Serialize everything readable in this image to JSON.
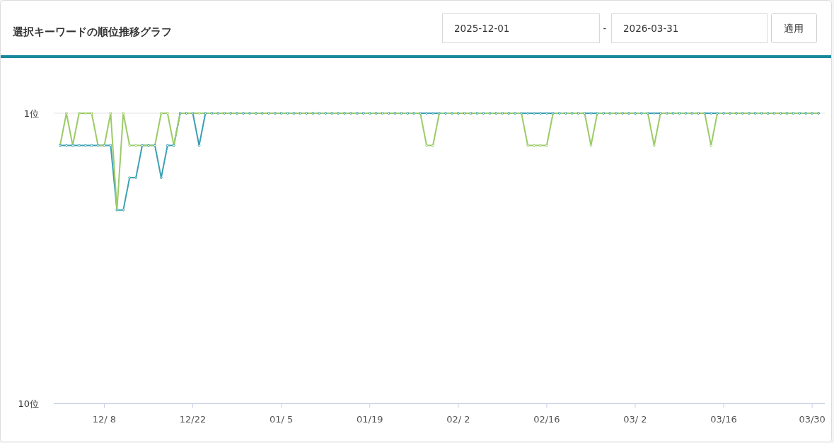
{
  "chart_data": {
    "type": "line",
    "title": "選択キーワードの順位推移グラフ",
    "annotations": [
      "2025-12-01",
      "-",
      "2026-03-31",
      "適用"
    ],
    "x": [
      "2025-12-01",
      "2025-12-02",
      "2025-12-03",
      "2025-12-04",
      "2025-12-05",
      "2025-12-06",
      "2025-12-07",
      "2025-12-08",
      "2025-12-09",
      "2025-12-10",
      "2025-12-11",
      "2025-12-12",
      "2025-12-13",
      "2025-12-14",
      "2025-12-15",
      "2025-12-16",
      "2025-12-17",
      "2025-12-18",
      "2025-12-19",
      "2025-12-20",
      "2025-12-21",
      "2025-12-22",
      "2025-12-23",
      "2025-12-24",
      "2025-12-25",
      "2025-12-26",
      "2025-12-27",
      "2025-12-28",
      "2025-12-29",
      "2025-12-30",
      "2025-12-31",
      "2026-01-01",
      "2026-01-02",
      "2026-01-03",
      "2026-01-04",
      "2026-01-05",
      "2026-01-06",
      "2026-01-07",
      "2026-01-08",
      "2026-01-09",
      "2026-01-10",
      "2026-01-11",
      "2026-01-12",
      "2026-01-13",
      "2026-01-14",
      "2026-01-15",
      "2026-01-16",
      "2026-01-17",
      "2026-01-18",
      "2026-01-19",
      "2026-01-20",
      "2026-01-21",
      "2026-01-22",
      "2026-01-23",
      "2026-01-24",
      "2026-01-25",
      "2026-01-26",
      "2026-01-27",
      "2026-01-28",
      "2026-01-29",
      "2026-01-30",
      "2026-01-31",
      "2026-02-01",
      "2026-02-02",
      "2026-02-03",
      "2026-02-04",
      "2026-02-05",
      "2026-02-06",
      "2026-02-07",
      "2026-02-08",
      "2026-02-09",
      "2026-02-10",
      "2026-02-11",
      "2026-02-12",
      "2026-02-13",
      "2026-02-14",
      "2026-02-15",
      "2026-02-16",
      "2026-02-17",
      "2026-02-18",
      "2026-02-19",
      "2026-02-20",
      "2026-02-21",
      "2026-02-22",
      "2026-02-23",
      "2026-02-24",
      "2026-02-25",
      "2026-02-26",
      "2026-02-27",
      "2026-02-28",
      "2026-03-01",
      "2026-03-02",
      "2026-03-03",
      "2026-03-04",
      "2026-03-05",
      "2026-03-06",
      "2026-03-07",
      "2026-03-08",
      "2026-03-09",
      "2026-03-10",
      "2026-03-11",
      "2026-03-12",
      "2026-03-13",
      "2026-03-14",
      "2026-03-15",
      "2026-03-16",
      "2026-03-17",
      "2026-03-18",
      "2026-03-19",
      "2026-03-20",
      "2026-03-21",
      "2026-03-22",
      "2026-03-23",
      "2026-03-24",
      "2026-03-25",
      "2026-03-26",
      "2026-03-27",
      "2026-03-28",
      "2026-03-29",
      "2026-03-30",
      "2026-03-31"
    ],
    "series": [
      {
        "color": "#3ba1b3",
        "values": [
          2,
          2,
          2,
          2,
          2,
          2,
          2,
          2,
          2,
          4,
          4,
          3,
          3,
          2,
          2,
          2,
          3,
          2,
          2,
          1,
          1,
          1,
          2,
          1,
          1,
          1,
          1,
          1,
          1,
          1,
          1,
          1,
          1,
          1,
          1,
          1,
          1,
          1,
          1,
          1,
          1,
          1,
          1,
          1,
          1,
          1,
          1,
          1,
          1,
          1,
          1,
          1,
          1,
          1,
          1,
          1,
          1,
          1,
          1,
          1,
          1,
          1,
          1,
          1,
          1,
          1,
          1,
          1,
          1,
          1,
          1,
          1,
          1,
          1,
          1,
          1,
          1,
          1,
          1,
          1,
          1,
          1,
          1,
          1,
          1,
          1,
          1,
          1,
          1,
          1,
          1,
          1,
          1,
          1,
          1,
          1,
          1,
          1,
          1,
          1,
          1,
          1,
          1,
          1,
          1,
          1,
          1,
          1,
          1,
          1,
          1,
          1,
          1,
          1,
          1,
          1,
          1,
          1,
          1,
          1,
          1
        ]
      },
      {
        "color": "#9ccb68",
        "values": [
          2,
          1,
          2,
          1,
          1,
          1,
          2,
          2,
          1,
          4,
          1,
          2,
          2,
          2,
          2,
          2,
          1,
          1,
          2,
          1,
          1,
          1,
          1,
          1,
          1,
          1,
          1,
          1,
          1,
          1,
          1,
          1,
          1,
          1,
          1,
          1,
          1,
          1,
          1,
          1,
          1,
          1,
          1,
          1,
          1,
          1,
          1,
          1,
          1,
          1,
          1,
          1,
          1,
          1,
          1,
          1,
          1,
          1,
          2,
          2,
          1,
          1,
          1,
          1,
          1,
          1,
          1,
          1,
          1,
          1,
          1,
          1,
          1,
          1,
          2,
          2,
          2,
          2,
          1,
          1,
          1,
          1,
          1,
          1,
          2,
          1,
          1,
          1,
          1,
          1,
          1,
          1,
          1,
          1,
          2,
          1,
          1,
          1,
          1,
          1,
          1,
          1,
          1,
          2,
          1,
          1,
          1,
          1,
          1,
          1,
          1,
          1,
          1,
          1,
          1,
          1,
          1,
          1,
          1,
          1,
          1
        ]
      }
    ],
    "xlim": [
      "2025-11-30",
      "2026-04-01"
    ],
    "xticks": [
      {
        "value": "2025-12-08",
        "label": "12/ 8"
      },
      {
        "value": "2025-12-22",
        "label": "12/22"
      },
      {
        "value": "2026-01-05",
        "label": "01/ 5"
      },
      {
        "value": "2026-01-19",
        "label": "01/19"
      },
      {
        "value": "2026-02-02",
        "label": "02/ 2"
      },
      {
        "value": "2026-02-16",
        "label": "02/16"
      },
      {
        "value": "2026-03-02",
        "label": "03/ 2"
      },
      {
        "value": "2026-03-16",
        "label": "03/16"
      },
      {
        "value": "2026-03-30",
        "label": "03/30"
      }
    ],
    "ylim": [
      10,
      1
    ],
    "yticks": [
      {
        "value": 1,
        "label": "1位"
      },
      {
        "value": 10,
        "label": "10位"
      }
    ],
    "grid": "y",
    "marker": "circle"
  }
}
